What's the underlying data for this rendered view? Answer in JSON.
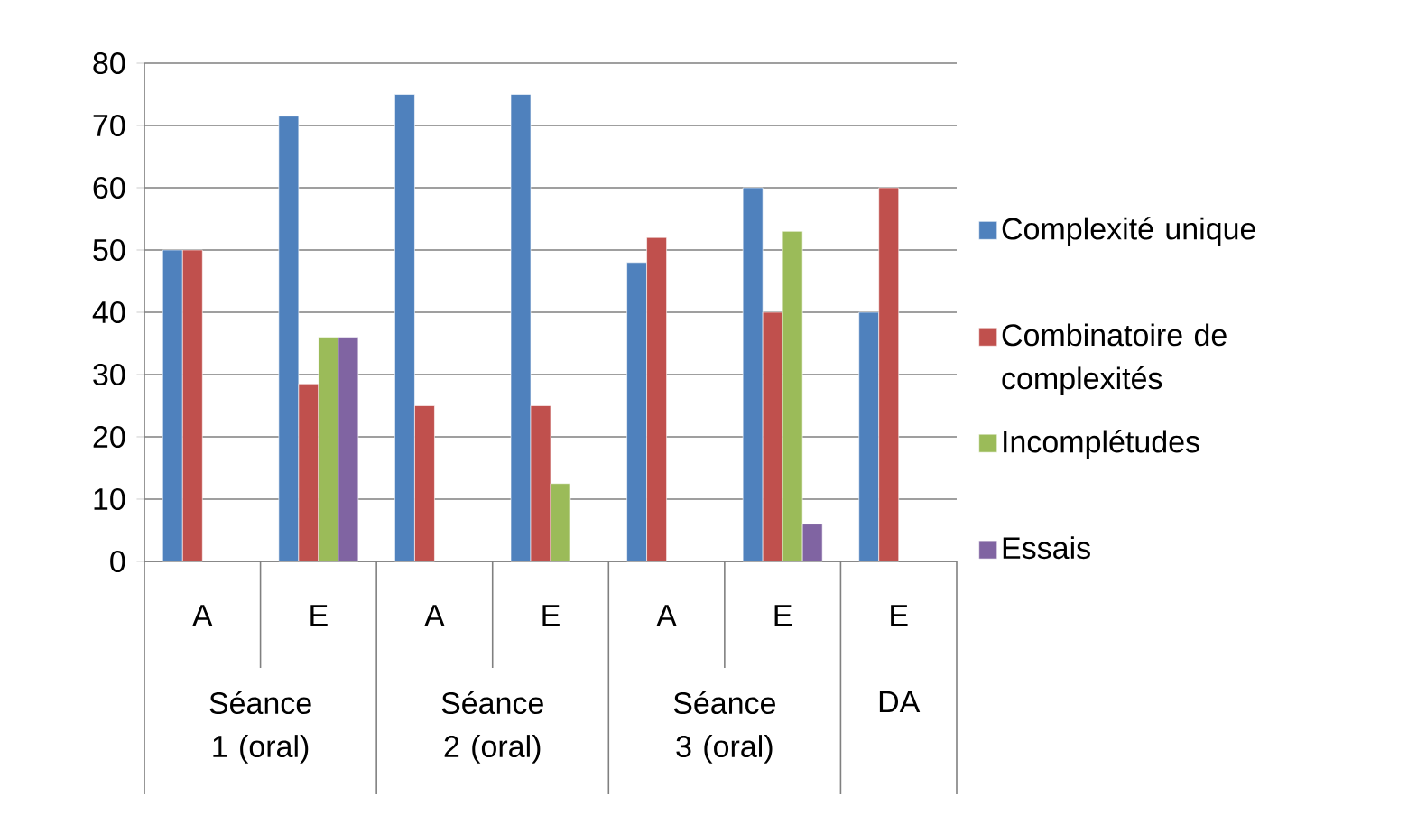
{
  "chart_data": {
    "type": "bar",
    "categories": [
      "A",
      "E",
      "A",
      "E",
      "A",
      "E",
      "E"
    ],
    "series": [
      {
        "name": "Complexité unique",
        "color": "#4f81bd",
        "values": [
          50,
          71.5,
          75,
          75,
          48,
          60,
          40
        ]
      },
      {
        "name": "Combinatoire de complexités",
        "color": "#c0504d",
        "values": [
          50,
          28.5,
          25,
          25,
          52,
          40,
          60
        ]
      },
      {
        "name": "Incomplétudes",
        "color": "#9bbb59",
        "values": [
          null,
          36,
          null,
          12.5,
          null,
          53,
          null
        ]
      },
      {
        "name": "Essais",
        "color": "#8064a2",
        "values": [
          null,
          36,
          null,
          null,
          null,
          6,
          null
        ]
      }
    ],
    "annotations": [
      "Séance 1 (oral)",
      "Séance 2 (oral)",
      "Séance 3 (oral)",
      "DA"
    ],
    "ylim": [
      0,
      80
    ],
    "yticks": [
      0,
      10,
      20,
      30,
      40,
      50,
      60,
      70,
      80
    ],
    "grid": "y",
    "legend": "right"
  }
}
